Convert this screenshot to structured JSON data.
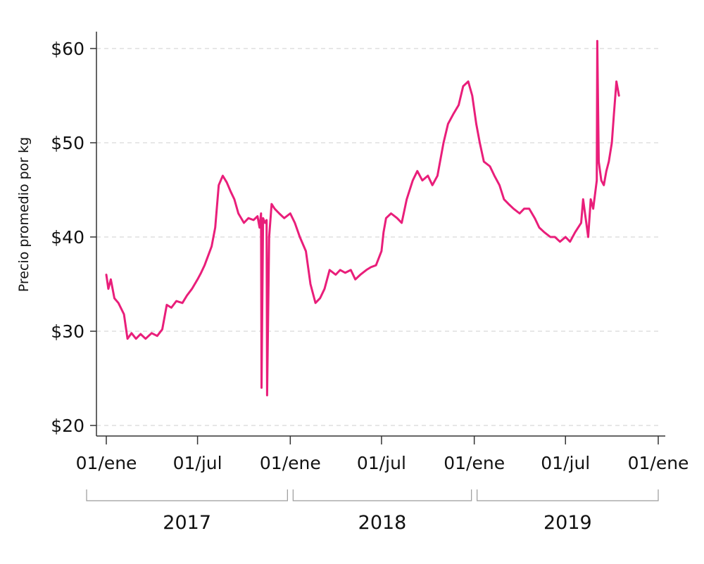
{
  "chart_data": {
    "type": "line",
    "title": "",
    "xlabel": "",
    "ylabel": "Precio promedio por kg",
    "grid": true,
    "legend": "none",
    "line_color": "#e91e7a",
    "x_range": [
      "2017-01-01",
      "2020-01-01"
    ],
    "ylim": [
      20,
      61
    ],
    "y_ticks": [
      {
        "value": 20,
        "label": "$20"
      },
      {
        "value": 30,
        "label": "$30"
      },
      {
        "value": 40,
        "label": "$40"
      },
      {
        "value": 50,
        "label": "$50"
      },
      {
        "value": 60,
        "label": "$60"
      }
    ],
    "x_ticks": [
      {
        "date": "2017-01-01",
        "label": "01/ene"
      },
      {
        "date": "2017-07-01",
        "label": "01/jul"
      },
      {
        "date": "2018-01-01",
        "label": "01/ene"
      },
      {
        "date": "2018-07-01",
        "label": "01/jul"
      },
      {
        "date": "2019-01-01",
        "label": "01/ene"
      },
      {
        "date": "2019-07-01",
        "label": "01/jul"
      },
      {
        "date": "2020-01-01",
        "label": "01/ene"
      }
    ],
    "year_groups": [
      {
        "label": "2017",
        "start": "2017-01-01",
        "end": "2018-01-01"
      },
      {
        "label": "2018",
        "start": "2018-01-01",
        "end": "2019-01-01"
      },
      {
        "label": "2019",
        "start": "2019-01-01",
        "end": "2020-01-01"
      }
    ],
    "series": [
      {
        "x": [
          "2017-01-01",
          "2017-01-05",
          "2017-01-10",
          "2017-01-17",
          "2017-01-25",
          "2017-02-05",
          "2017-02-12",
          "2017-02-20",
          "2017-03-01",
          "2017-03-10",
          "2017-03-20",
          "2017-04-01",
          "2017-04-12",
          "2017-04-22",
          "2017-05-01",
          "2017-05-10",
          "2017-05-20",
          "2017-06-01",
          "2017-06-10",
          "2017-06-20",
          "2017-07-01",
          "2017-07-08",
          "2017-07-15",
          "2017-07-22",
          "2017-07-29",
          "2017-08-05",
          "2017-08-12",
          "2017-08-20",
          "2017-08-28",
          "2017-09-05",
          "2017-09-12",
          "2017-09-20",
          "2017-10-01",
          "2017-10-10",
          "2017-10-20",
          "2017-10-28",
          "2017-11-01",
          "2017-11-04",
          "2017-11-05",
          "2017-11-08",
          "2017-11-12",
          "2017-11-15",
          "2017-11-16",
          "2017-11-20",
          "2017-11-25",
          "2017-12-01",
          "2017-12-10",
          "2017-12-20",
          "2018-01-01",
          "2018-01-10",
          "2018-01-20",
          "2018-02-01",
          "2018-02-10",
          "2018-02-20",
          "2018-03-01",
          "2018-03-10",
          "2018-03-20",
          "2018-04-01",
          "2018-04-10",
          "2018-04-20",
          "2018-05-01",
          "2018-05-10",
          "2018-05-20",
          "2018-06-01",
          "2018-06-10",
          "2018-06-20",
          "2018-07-01",
          "2018-07-05",
          "2018-07-10",
          "2018-07-20",
          "2018-08-01",
          "2018-08-10",
          "2018-08-20",
          "2018-09-01",
          "2018-09-10",
          "2018-09-20",
          "2018-10-01",
          "2018-10-10",
          "2018-10-20",
          "2018-11-01",
          "2018-11-10",
          "2018-11-20",
          "2018-12-01",
          "2018-12-10",
          "2018-12-20",
          "2018-12-28",
          "2019-01-05",
          "2019-01-12",
          "2019-01-20",
          "2019-02-01",
          "2019-02-10",
          "2019-02-20",
          "2019-03-01",
          "2019-03-10",
          "2019-03-20",
          "2019-04-01",
          "2019-04-10",
          "2019-04-20",
          "2019-05-01",
          "2019-05-10",
          "2019-05-20",
          "2019-06-01",
          "2019-06-10",
          "2019-06-20",
          "2019-07-01",
          "2019-07-10",
          "2019-07-20",
          "2019-08-01",
          "2019-08-05",
          "2019-08-10",
          "2019-08-15",
          "2019-08-20",
          "2019-08-25",
          "2019-09-01",
          "2019-09-02",
          "2019-09-05",
          "2019-09-10",
          "2019-09-15",
          "2019-09-20",
          "2019-09-25",
          "2019-10-01",
          "2019-10-05",
          "2019-10-10",
          "2019-10-15"
        ],
        "y": [
          36.0,
          34.5,
          35.5,
          33.5,
          33.0,
          31.8,
          29.2,
          29.8,
          29.2,
          29.7,
          29.2,
          29.8,
          29.5,
          30.2,
          32.8,
          32.5,
          33.2,
          33.0,
          33.8,
          34.5,
          35.5,
          36.2,
          37.0,
          38.0,
          39.0,
          41.0,
          45.5,
          46.5,
          45.8,
          44.8,
          44.0,
          42.5,
          41.5,
          42.0,
          41.8,
          42.2,
          41.0,
          42.5,
          24.0,
          42.0,
          41.5,
          41.8,
          23.2,
          40.0,
          43.5,
          43.0,
          42.5,
          42.0,
          42.5,
          41.5,
          40.0,
          38.5,
          35.0,
          33.0,
          33.5,
          34.5,
          36.5,
          36.0,
          36.5,
          36.2,
          36.5,
          35.5,
          36.0,
          36.5,
          36.8,
          37.0,
          38.5,
          40.5,
          42.0,
          42.5,
          42.0,
          41.5,
          44.0,
          46.0,
          47.0,
          46.0,
          46.5,
          45.5,
          46.5,
          50.0,
          52.0,
          53.0,
          54.0,
          56.0,
          56.5,
          55.0,
          52.0,
          50.0,
          48.0,
          47.5,
          46.5,
          45.5,
          44.0,
          43.5,
          43.0,
          42.5,
          43.0,
          43.0,
          42.0,
          41.0,
          40.5,
          40.0,
          40.0,
          39.5,
          40.0,
          39.5,
          40.5,
          41.5,
          44.0,
          42.0,
          40.0,
          44.0,
          43.0,
          46.0,
          60.8,
          48.0,
          46.0,
          45.5,
          47.0,
          48.0,
          50.0,
          53.0,
          56.5,
          55.0
        ]
      }
    ]
  }
}
